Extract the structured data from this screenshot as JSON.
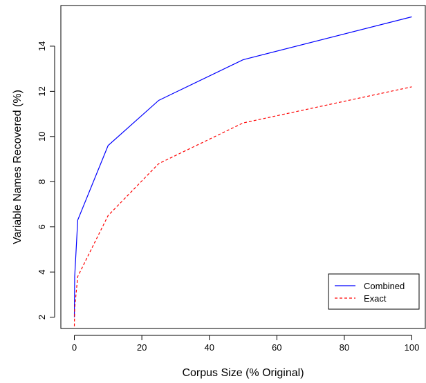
{
  "chart_data": {
    "type": "line",
    "xlabel": "Corpus Size (% Original)",
    "ylabel": "Variable Names Recovered (%)",
    "xlim": [
      -4,
      104
    ],
    "ylim": [
      1.5,
      15.8
    ],
    "x_ticks": [
      0,
      20,
      40,
      60,
      80,
      100
    ],
    "y_ticks": [
      2,
      4,
      6,
      8,
      10,
      12,
      14
    ],
    "grid": false,
    "legend_position": "bottom-right",
    "series": [
      {
        "name": "Combined",
        "color": "#0000ff",
        "line_style": "solid",
        "x": [
          0,
          0.1,
          1,
          10,
          25,
          50,
          100
        ],
        "y": [
          2.0,
          3.8,
          6.3,
          9.6,
          11.6,
          13.4,
          15.3
        ]
      },
      {
        "name": "Exact",
        "color": "#ff0000",
        "line_style": "dashed",
        "x": [
          0,
          0.1,
          1,
          10,
          25,
          50,
          100
        ],
        "y": [
          1.6,
          2.4,
          3.8,
          6.5,
          8.8,
          10.6,
          12.2
        ]
      }
    ]
  }
}
